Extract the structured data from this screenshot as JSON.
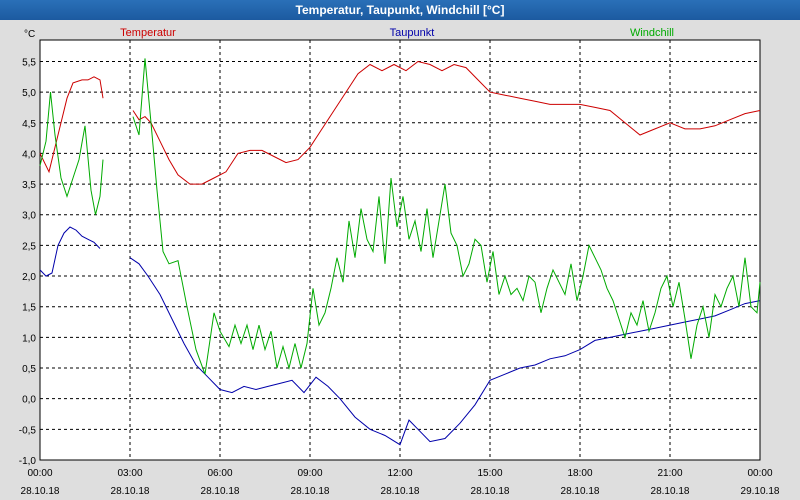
{
  "chart_data": {
    "type": "line",
    "title": "Temperatur, Taupunkt, Windchill [°C]",
    "ylabel": "°C",
    "ylim": [
      -1.0,
      5.85
    ],
    "grid": true,
    "xlim_hours": [
      0,
      24
    ],
    "x_ticks": [
      {
        "time": "00:00",
        "date": "28.10.18"
      },
      {
        "time": "03:00",
        "date": "28.10.18"
      },
      {
        "time": "06:00",
        "date": "28.10.18"
      },
      {
        "time": "09:00",
        "date": "28.10.18"
      },
      {
        "time": "12:00",
        "date": "28.10.18"
      },
      {
        "time": "15:00",
        "date": "28.10.18"
      },
      {
        "time": "18:00",
        "date": "28.10.18"
      },
      {
        "time": "21:00",
        "date": "28.10.18"
      },
      {
        "time": "00:00",
        "date": "29.10.18"
      }
    ],
    "y_ticks": [
      "5,5",
      "5,0",
      "4,5",
      "4,0",
      "3,5",
      "3,0",
      "2,5",
      "2,0",
      "1,5",
      "1,0",
      "0,5",
      "0,0",
      "-0,5",
      "-1,0"
    ],
    "legend_position": "top",
    "series": [
      {
        "name": "Temperatur",
        "color": "#cc0000",
        "segments": [
          [
            [
              0,
              4.0
            ],
            [
              0.3,
              3.7
            ],
            [
              0.6,
              4.3
            ],
            [
              0.9,
              4.9
            ],
            [
              1.1,
              5.15
            ],
            [
              1.4,
              5.2
            ],
            [
              1.6,
              5.2
            ],
            [
              1.8,
              5.25
            ],
            [
              2.0,
              5.2
            ],
            [
              2.1,
              4.9
            ]
          ],
          [
            [
              3.1,
              4.7
            ],
            [
              3.3,
              4.55
            ],
            [
              3.5,
              4.6
            ],
            [
              3.7,
              4.5
            ],
            [
              4.0,
              4.2
            ],
            [
              4.3,
              3.9
            ],
            [
              4.6,
              3.65
            ],
            [
              5.0,
              3.5
            ],
            [
              5.4,
              3.5
            ],
            [
              5.8,
              3.6
            ],
            [
              6.2,
              3.7
            ],
            [
              6.6,
              4.0
            ],
            [
              7.0,
              4.05
            ],
            [
              7.4,
              4.05
            ],
            [
              7.8,
              3.95
            ],
            [
              8.2,
              3.85
            ],
            [
              8.6,
              3.9
            ],
            [
              9.0,
              4.1
            ],
            [
              9.4,
              4.4
            ],
            [
              9.8,
              4.7
            ],
            [
              10.2,
              5.0
            ],
            [
              10.6,
              5.3
            ],
            [
              11.0,
              5.45
            ],
            [
              11.4,
              5.35
            ],
            [
              11.8,
              5.45
            ],
            [
              12.2,
              5.35
            ],
            [
              12.6,
              5.5
            ],
            [
              13.0,
              5.45
            ],
            [
              13.4,
              5.35
            ],
            [
              13.8,
              5.45
            ],
            [
              14.2,
              5.4
            ],
            [
              14.6,
              5.2
            ],
            [
              15.0,
              5.0
            ],
            [
              15.5,
              4.95
            ],
            [
              16.0,
              4.9
            ],
            [
              16.5,
              4.85
            ],
            [
              17.0,
              4.8
            ],
            [
              17.5,
              4.8
            ],
            [
              18.0,
              4.8
            ],
            [
              18.5,
              4.75
            ],
            [
              19.0,
              4.7
            ],
            [
              19.5,
              4.5
            ],
            [
              20.0,
              4.3
            ],
            [
              20.5,
              4.4
            ],
            [
              21.0,
              4.5
            ],
            [
              21.5,
              4.4
            ],
            [
              22.0,
              4.4
            ],
            [
              22.5,
              4.45
            ],
            [
              23.0,
              4.55
            ],
            [
              23.5,
              4.65
            ],
            [
              24.0,
              4.7
            ]
          ]
        ]
      },
      {
        "name": "Taupunkt",
        "color": "#0000aa",
        "segments": [
          [
            [
              0,
              2.1
            ],
            [
              0.2,
              2.0
            ],
            [
              0.4,
              2.05
            ],
            [
              0.6,
              2.5
            ],
            [
              0.8,
              2.7
            ],
            [
              1.0,
              2.8
            ],
            [
              1.2,
              2.75
            ],
            [
              1.4,
              2.65
            ],
            [
              1.6,
              2.6
            ],
            [
              1.8,
              2.55
            ],
            [
              2.0,
              2.45
            ]
          ],
          [
            [
              3.0,
              2.3
            ],
            [
              3.3,
              2.2
            ],
            [
              3.6,
              2.0
            ],
            [
              4.0,
              1.7
            ],
            [
              4.4,
              1.3
            ],
            [
              4.8,
              0.9
            ],
            [
              5.2,
              0.55
            ],
            [
              5.6,
              0.35
            ],
            [
              6.0,
              0.15
            ],
            [
              6.4,
              0.1
            ],
            [
              6.8,
              0.2
            ],
            [
              7.2,
              0.15
            ],
            [
              7.6,
              0.2
            ],
            [
              8.0,
              0.25
            ],
            [
              8.4,
              0.3
            ],
            [
              8.8,
              0.1
            ],
            [
              9.2,
              0.35
            ],
            [
              9.6,
              0.2
            ],
            [
              10.0,
              0.0
            ],
            [
              10.5,
              -0.3
            ],
            [
              11.0,
              -0.5
            ],
            [
              11.5,
              -0.6
            ],
            [
              12.0,
              -0.75
            ],
            [
              12.3,
              -0.35
            ],
            [
              12.6,
              -0.5
            ],
            [
              13.0,
              -0.7
            ],
            [
              13.5,
              -0.65
            ],
            [
              14.0,
              -0.4
            ],
            [
              14.5,
              -0.1
            ],
            [
              15.0,
              0.3
            ],
            [
              15.5,
              0.4
            ],
            [
              16.0,
              0.5
            ],
            [
              16.5,
              0.55
            ],
            [
              17.0,
              0.65
            ],
            [
              17.5,
              0.7
            ],
            [
              18.0,
              0.8
            ],
            [
              18.5,
              0.95
            ],
            [
              19.0,
              1.0
            ],
            [
              19.5,
              1.05
            ],
            [
              20.0,
              1.1
            ],
            [
              20.5,
              1.15
            ],
            [
              21.0,
              1.2
            ],
            [
              21.5,
              1.25
            ],
            [
              22.0,
              1.3
            ],
            [
              22.5,
              1.35
            ],
            [
              23.0,
              1.45
            ],
            [
              23.5,
              1.55
            ],
            [
              24.0,
              1.6
            ]
          ]
        ]
      },
      {
        "name": "Windchill",
        "color": "#00aa00",
        "segments": [
          [
            [
              0,
              3.8
            ],
            [
              0.2,
              4.2
            ],
            [
              0.35,
              5.0
            ],
            [
              0.5,
              4.3
            ],
            [
              0.7,
              3.6
            ],
            [
              0.9,
              3.3
            ],
            [
              1.1,
              3.6
            ],
            [
              1.3,
              3.9
            ],
            [
              1.5,
              4.45
            ],
            [
              1.7,
              3.4
            ],
            [
              1.85,
              3.0
            ],
            [
              2.0,
              3.3
            ],
            [
              2.1,
              3.9
            ]
          ],
          [
            [
              3.1,
              4.6
            ],
            [
              3.3,
              4.3
            ],
            [
              3.5,
              5.55
            ],
            [
              3.7,
              4.5
            ],
            [
              3.9,
              3.4
            ],
            [
              4.1,
              2.4
            ],
            [
              4.3,
              2.2
            ],
            [
              4.6,
              2.25
            ],
            [
              4.9,
              1.5
            ],
            [
              5.2,
              0.8
            ],
            [
              5.5,
              0.4
            ],
            [
              5.8,
              1.4
            ],
            [
              6.0,
              1.1
            ],
            [
              6.3,
              0.85
            ],
            [
              6.5,
              1.2
            ],
            [
              6.7,
              0.9
            ],
            [
              6.9,
              1.2
            ],
            [
              7.1,
              0.8
            ],
            [
              7.3,
              1.2
            ],
            [
              7.5,
              0.8
            ],
            [
              7.7,
              1.1
            ],
            [
              7.9,
              0.5
            ],
            [
              8.1,
              0.85
            ],
            [
              8.3,
              0.5
            ],
            [
              8.5,
              0.9
            ],
            [
              8.7,
              0.5
            ],
            [
              8.9,
              0.9
            ],
            [
              9.1,
              1.8
            ],
            [
              9.3,
              1.2
            ],
            [
              9.5,
              1.4
            ],
            [
              9.7,
              1.8
            ],
            [
              9.9,
              2.3
            ],
            [
              10.1,
              1.9
            ],
            [
              10.3,
              2.9
            ],
            [
              10.5,
              2.3
            ],
            [
              10.7,
              3.1
            ],
            [
              10.9,
              2.6
            ],
            [
              11.1,
              2.4
            ],
            [
              11.3,
              3.3
            ],
            [
              11.5,
              2.2
            ],
            [
              11.7,
              3.6
            ],
            [
              11.9,
              2.8
            ],
            [
              12.1,
              3.3
            ],
            [
              12.3,
              2.6
            ],
            [
              12.5,
              2.9
            ],
            [
              12.7,
              2.4
            ],
            [
              12.9,
              3.1
            ],
            [
              13.1,
              2.3
            ],
            [
              13.3,
              2.9
            ],
            [
              13.5,
              3.5
            ],
            [
              13.7,
              2.7
            ],
            [
              13.9,
              2.5
            ],
            [
              14.1,
              2.0
            ],
            [
              14.3,
              2.2
            ],
            [
              14.5,
              2.6
            ],
            [
              14.7,
              2.5
            ],
            [
              14.9,
              1.9
            ],
            [
              15.1,
              2.4
            ],
            [
              15.3,
              1.7
            ],
            [
              15.5,
              2.0
            ],
            [
              15.7,
              1.7
            ],
            [
              15.9,
              1.8
            ],
            [
              16.1,
              1.6
            ],
            [
              16.3,
              2.0
            ],
            [
              16.5,
              1.9
            ],
            [
              16.7,
              1.4
            ],
            [
              16.9,
              1.8
            ],
            [
              17.1,
              2.1
            ],
            [
              17.3,
              1.9
            ],
            [
              17.5,
              1.7
            ],
            [
              17.7,
              2.2
            ],
            [
              17.9,
              1.6
            ],
            [
              18.1,
              2.0
            ],
            [
              18.3,
              2.5
            ],
            [
              18.5,
              2.3
            ],
            [
              18.7,
              2.1
            ],
            [
              18.9,
              1.8
            ],
            [
              19.1,
              1.6
            ],
            [
              19.3,
              1.3
            ],
            [
              19.5,
              1.0
            ],
            [
              19.7,
              1.4
            ],
            [
              19.9,
              1.2
            ],
            [
              20.1,
              1.6
            ],
            [
              20.3,
              1.1
            ],
            [
              20.5,
              1.4
            ],
            [
              20.7,
              1.8
            ],
            [
              20.9,
              2.0
            ],
            [
              21.1,
              1.5
            ],
            [
              21.3,
              1.9
            ],
            [
              21.5,
              1.3
            ],
            [
              21.7,
              0.65
            ],
            [
              21.9,
              1.2
            ],
            [
              22.1,
              1.5
            ],
            [
              22.3,
              1.0
            ],
            [
              22.5,
              1.7
            ],
            [
              22.7,
              1.5
            ],
            [
              22.9,
              1.8
            ],
            [
              23.1,
              2.0
            ],
            [
              23.3,
              1.5
            ],
            [
              23.5,
              2.3
            ],
            [
              23.7,
              1.5
            ],
            [
              23.9,
              1.4
            ],
            [
              24.0,
              1.9
            ]
          ]
        ]
      }
    ]
  }
}
